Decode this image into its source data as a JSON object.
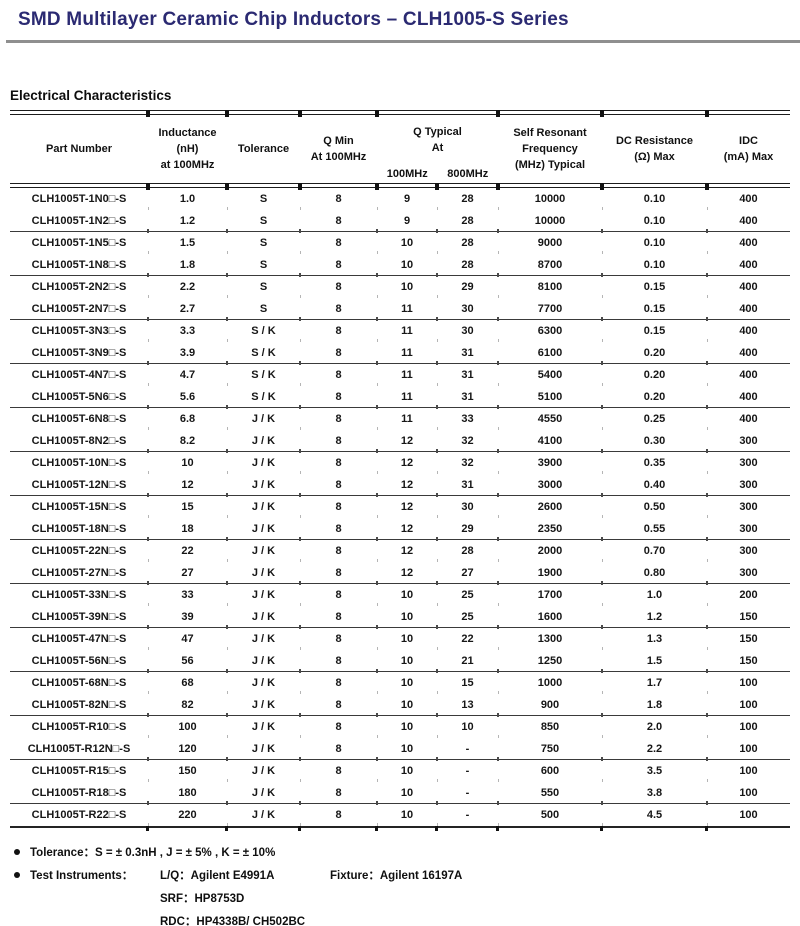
{
  "page": {
    "title": "SMD Multilayer Ceramic Chip Inductors – CLH1005-S Series",
    "section_heading": "Electrical Characteristics",
    "title_color": "#2b2a72",
    "rule_color": "#8f8f8f"
  },
  "table": {
    "header": {
      "part_number": "Part Number",
      "inductance": "Inductance\n(nH)\nat 100MHz",
      "tolerance": "Tolerance",
      "q_min": "Q Min\nAt 100MHz",
      "q_typical": "Q Typical\nAt",
      "q_sub_100": "100MHz",
      "q_sub_800": "800MHz",
      "srf": "Self Resonant\nFrequency\n(MHz) Typical",
      "dc_resistance": "DC Resistance\n(Ω) Max",
      "idc": "IDC\n(mA) Max"
    },
    "rows": [
      [
        "CLH1005T-1N0□-S",
        "1.0",
        "S",
        "8",
        "9",
        "28",
        "10000",
        "0.10",
        "400"
      ],
      [
        "CLH1005T-1N2□-S",
        "1.2",
        "S",
        "8",
        "9",
        "28",
        "10000",
        "0.10",
        "400"
      ],
      [
        "CLH1005T-1N5□-S",
        "1.5",
        "S",
        "8",
        "10",
        "28",
        "9000",
        "0.10",
        "400"
      ],
      [
        "CLH1005T-1N8□-S",
        "1.8",
        "S",
        "8",
        "10",
        "28",
        "8700",
        "0.10",
        "400"
      ],
      [
        "CLH1005T-2N2□-S",
        "2.2",
        "S",
        "8",
        "10",
        "29",
        "8100",
        "0.15",
        "400"
      ],
      [
        "CLH1005T-2N7□-S",
        "2.7",
        "S",
        "8",
        "11",
        "30",
        "7700",
        "0.15",
        "400"
      ],
      [
        "CLH1005T-3N3□-S",
        "3.3",
        "S / K",
        "8",
        "11",
        "30",
        "6300",
        "0.15",
        "400"
      ],
      [
        "CLH1005T-3N9□-S",
        "3.9",
        "S / K",
        "8",
        "11",
        "31",
        "6100",
        "0.20",
        "400"
      ],
      [
        "CLH1005T-4N7□-S",
        "4.7",
        "S / K",
        "8",
        "11",
        "31",
        "5400",
        "0.20",
        "400"
      ],
      [
        "CLH1005T-5N6□-S",
        "5.6",
        "S / K",
        "8",
        "11",
        "31",
        "5100",
        "0.20",
        "400"
      ],
      [
        "CLH1005T-6N8□-S",
        "6.8",
        "J / K",
        "8",
        "11",
        "33",
        "4550",
        "0.25",
        "400"
      ],
      [
        "CLH1005T-8N2□-S",
        "8.2",
        "J / K",
        "8",
        "12",
        "32",
        "4100",
        "0.30",
        "300"
      ],
      [
        "CLH1005T-10N□-S",
        "10",
        "J / K",
        "8",
        "12",
        "32",
        "3900",
        "0.35",
        "300"
      ],
      [
        "CLH1005T-12N□-S",
        "12",
        "J / K",
        "8",
        "12",
        "31",
        "3000",
        "0.40",
        "300"
      ],
      [
        "CLH1005T-15N□-S",
        "15",
        "J / K",
        "8",
        "12",
        "30",
        "2600",
        "0.50",
        "300"
      ],
      [
        "CLH1005T-18N□-S",
        "18",
        "J / K",
        "8",
        "12",
        "29",
        "2350",
        "0.55",
        "300"
      ],
      [
        "CLH1005T-22N□-S",
        "22",
        "J / K",
        "8",
        "12",
        "28",
        "2000",
        "0.70",
        "300"
      ],
      [
        "CLH1005T-27N□-S",
        "27",
        "J / K",
        "8",
        "12",
        "27",
        "1900",
        "0.80",
        "300"
      ],
      [
        "CLH1005T-33N□-S",
        "33",
        "J / K",
        "8",
        "10",
        "25",
        "1700",
        "1.0",
        "200"
      ],
      [
        "CLH1005T-39N□-S",
        "39",
        "J / K",
        "8",
        "10",
        "25",
        "1600",
        "1.2",
        "150"
      ],
      [
        "CLH1005T-47N□-S",
        "47",
        "J / K",
        "8",
        "10",
        "22",
        "1300",
        "1.3",
        "150"
      ],
      [
        "CLH1005T-56N□-S",
        "56",
        "J / K",
        "8",
        "10",
        "21",
        "1250",
        "1.5",
        "150"
      ],
      [
        "CLH1005T-68N□-S",
        "68",
        "J / K",
        "8",
        "10",
        "15",
        "1000",
        "1.7",
        "100"
      ],
      [
        "CLH1005T-82N□-S",
        "82",
        "J / K",
        "8",
        "10",
        "13",
        "900",
        "1.8",
        "100"
      ],
      [
        "CLH1005T-R10□-S",
        "100",
        "J / K",
        "8",
        "10",
        "10",
        "850",
        "2.0",
        "100"
      ],
      [
        "CLH1005T-R12N□-S",
        "120",
        "J / K",
        "8",
        "10",
        "-",
        "750",
        "2.2",
        "100"
      ],
      [
        "CLH1005T-R15□-S",
        "150",
        "J / K",
        "8",
        "10",
        "-",
        "600",
        "3.5",
        "100"
      ],
      [
        "CLH1005T-R18□-S",
        "180",
        "J / K",
        "8",
        "10",
        "-",
        "550",
        "3.8",
        "100"
      ],
      [
        "CLH1005T-R22□-S",
        "220",
        "J / K",
        "8",
        "10",
        "-",
        "500",
        "4.5",
        "100"
      ]
    ],
    "group_break_after": [
      2,
      4,
      6,
      8,
      10,
      12,
      14,
      16,
      18,
      20,
      22,
      24,
      26,
      28
    ]
  },
  "notes": {
    "tolerance": "Tolerance：S = ± 0.3nH , J = ± 5% , K = ± 10%",
    "test_instruments_label": "Test Instruments：",
    "lq": "L/Q：Agilent E4991A",
    "fixture": "Fixture：Agilent 16197A",
    "srf": "SRF：HP8753D",
    "rdc": "RDC：HP4338B/ CH502BC"
  }
}
